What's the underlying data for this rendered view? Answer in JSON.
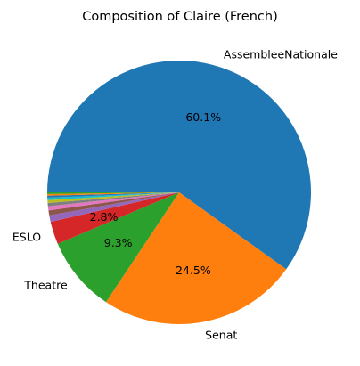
{
  "chart_data": {
    "type": "pie",
    "title": "Composition of Claire (French)",
    "start_angle_deg": 180,
    "direction": "clockwise",
    "slices": [
      {
        "name": "AssembleeNationale",
        "value": 60.1,
        "label": "AssembleeNationale",
        "pct_label": "60.1%",
        "color": "#1f77b4"
      },
      {
        "name": "Senat",
        "value": 24.5,
        "label": "Senat",
        "pct_label": "24.5%",
        "color": "#ff7f0e"
      },
      {
        "name": "Theatre",
        "value": 9.3,
        "label": "Theatre",
        "pct_label": "9.3%",
        "color": "#2ca02c"
      },
      {
        "name": "ESLO",
        "value": 2.8,
        "label": "ESLO",
        "pct_label": "2.8%",
        "color": "#d62728"
      },
      {
        "name": "",
        "value": 0.8,
        "label": "",
        "pct_label": "",
        "color": "#9467bd"
      },
      {
        "name": "",
        "value": 0.6,
        "label": "",
        "pct_label": "",
        "color": "#8c564b"
      },
      {
        "name": "",
        "value": 0.5,
        "label": "",
        "pct_label": "",
        "color": "#e377c2"
      },
      {
        "name": "",
        "value": 0.4,
        "label": "",
        "pct_label": "",
        "color": "#7f7f7f"
      },
      {
        "name": "",
        "value": 0.35,
        "label": "",
        "pct_label": "",
        "color": "#bcbd22"
      },
      {
        "name": "",
        "value": 0.3,
        "label": "",
        "pct_label": "",
        "color": "#17becf"
      },
      {
        "name": "",
        "value": 0.25,
        "label": "",
        "pct_label": "",
        "color": "#1f77b4"
      },
      {
        "name": "",
        "value": 0.2,
        "label": "",
        "pct_label": "",
        "color": "#ff7f0e"
      },
      {
        "name": "",
        "value": 0.2,
        "label": "",
        "pct_label": "",
        "color": "#2ca02c"
      }
    ]
  }
}
